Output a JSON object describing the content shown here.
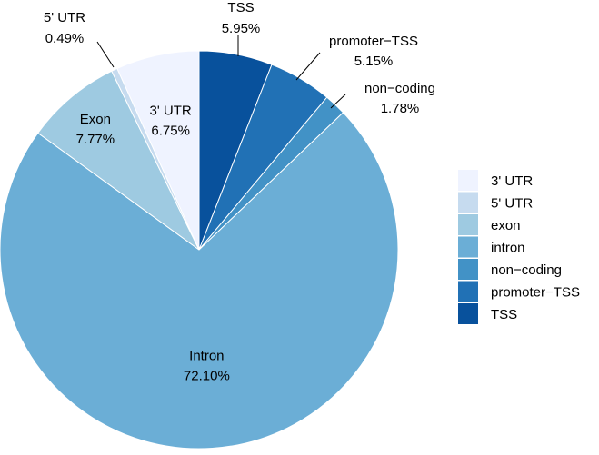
{
  "chart_data": {
    "type": "pie",
    "start": "12 o'clock",
    "direction": "clockwise",
    "slices": [
      {
        "name": "TSS",
        "label": "TSS",
        "percent_label": "5.95%",
        "value": 5.95,
        "color": "#08519c",
        "label_placement": "outside"
      },
      {
        "name": "promoter-TSS",
        "label": "promoter−TSS",
        "percent_label": "5.15%",
        "value": 5.15,
        "color": "#2171b5",
        "label_placement": "outside"
      },
      {
        "name": "non-coding",
        "label": "non−coding",
        "percent_label": "1.78%",
        "value": 1.78,
        "color": "#4292c6",
        "label_placement": "outside"
      },
      {
        "name": "intron",
        "label": "Intron",
        "percent_label": "72.10%",
        "value": 72.1,
        "color": "#6baed6",
        "label_placement": "inside"
      },
      {
        "name": "exon",
        "label": "Exon",
        "percent_label": "7.77%",
        "value": 7.77,
        "color": "#9ecae1",
        "label_placement": "inside"
      },
      {
        "name": "5' UTR",
        "label": "5' UTR",
        "percent_label": "0.49%",
        "value": 0.49,
        "color": "#c6dbef",
        "label_placement": "outside"
      },
      {
        "name": "3' UTR",
        "label": "3' UTR",
        "percent_label": "6.75%",
        "value": 6.75,
        "color": "#eff3ff",
        "label_placement": "inside"
      }
    ],
    "legend": {
      "position": "right",
      "items": [
        {
          "label": "3' UTR",
          "color": "#eff3ff"
        },
        {
          "label": "5' UTR",
          "color": "#c6dbef"
        },
        {
          "label": "exon",
          "color": "#9ecae1"
        },
        {
          "label": "intron",
          "color": "#6baed6"
        },
        {
          "label": "non−coding",
          "color": "#4292c6"
        },
        {
          "label": "promoter−TSS",
          "color": "#2171b5"
        },
        {
          "label": "TSS",
          "color": "#08519c"
        }
      ]
    }
  }
}
